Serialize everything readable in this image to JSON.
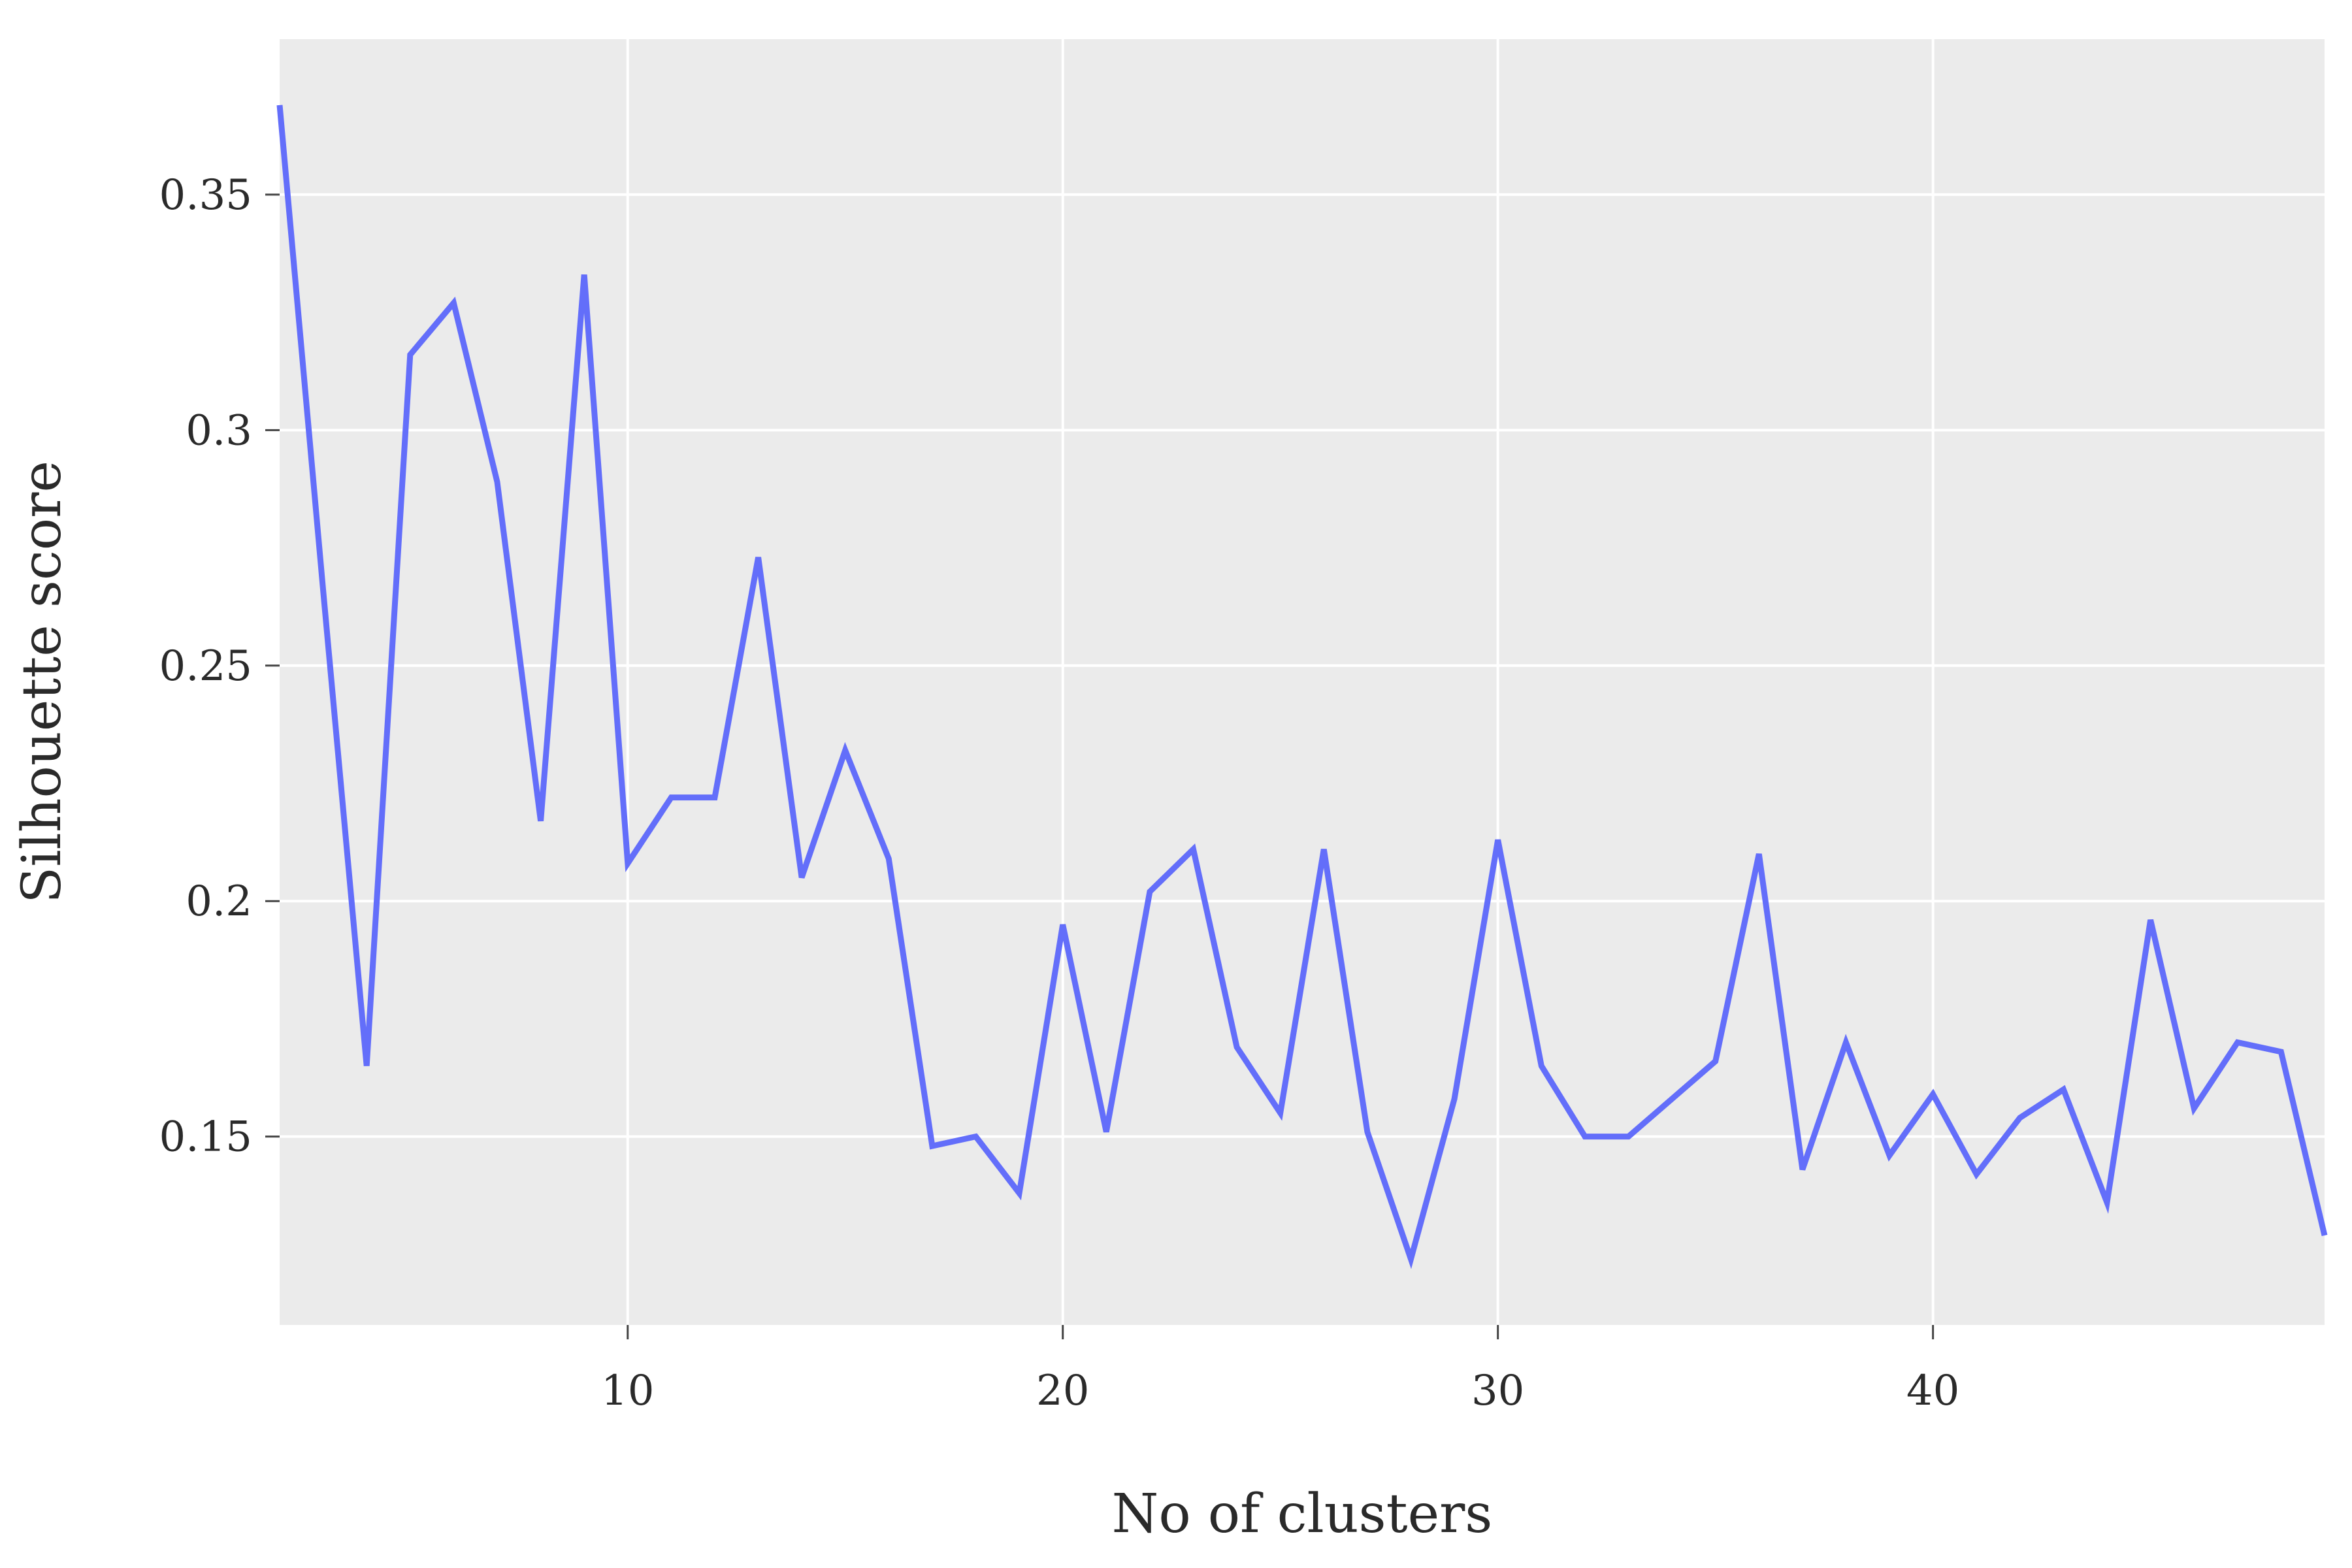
{
  "chart_data": {
    "type": "line",
    "xlabel": "No of clusters",
    "ylabel": "Silhouette score",
    "xlim": [
      2,
      49
    ],
    "ylim": [
      0.11,
      0.383
    ],
    "x_ticks": [
      10,
      20,
      30,
      40
    ],
    "x_tick_labels": [
      "10",
      "20",
      "30",
      "40"
    ],
    "y_ticks": [
      0.15,
      0.2,
      0.25,
      0.3,
      0.35
    ],
    "y_tick_labels": [
      "0.15",
      "0.2",
      "0.25",
      "0.3",
      "0.35"
    ],
    "grid": true,
    "colors": {
      "plot_background": "#ebebeb",
      "grid": "#ffffff",
      "line": "#636efa",
      "text": "#2a2a2a"
    },
    "series": [
      {
        "x": [
          2,
          3,
          4,
          5,
          6,
          7,
          8,
          9,
          10,
          11,
          12,
          13,
          14,
          15,
          16,
          17,
          18,
          19,
          20,
          21,
          22,
          23,
          24,
          25,
          26,
          27,
          28,
          29,
          30,
          31,
          32,
          33,
          34,
          35,
          36,
          37,
          38,
          39,
          40,
          41,
          42,
          43,
          44,
          45,
          46,
          47,
          48,
          49
        ],
        "y": [
          0.369,
          0.266,
          0.165,
          0.316,
          0.327,
          0.289,
          0.217,
          0.333,
          0.208,
          0.222,
          0.222,
          0.273,
          0.205,
          0.232,
          0.209,
          0.148,
          0.15,
          0.138,
          0.195,
          0.151,
          0.202,
          0.211,
          0.169,
          0.155,
          0.211,
          0.151,
          0.124,
          0.158,
          0.213,
          0.165,
          0.15,
          0.15,
          0.158,
          0.166,
          0.21,
          0.143,
          0.17,
          0.146,
          0.159,
          0.142,
          0.154,
          0.16,
          0.136,
          0.196,
          0.156,
          0.17,
          0.168,
          0.129
        ]
      }
    ]
  }
}
